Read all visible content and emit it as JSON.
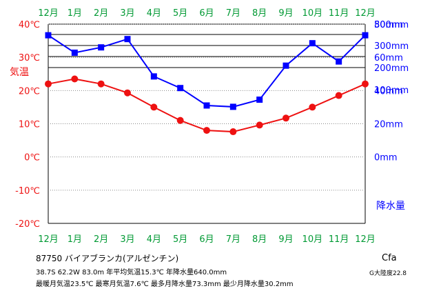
{
  "chart_data": {
    "type": "line",
    "categories": [
      "12月",
      "1月",
      "2月",
      "3月",
      "4月",
      "5月",
      "6月",
      "7月",
      "8月",
      "9月",
      "10月",
      "11月",
      "12月"
    ],
    "series": [
      {
        "name": "気温",
        "axis": "left",
        "color": "#ee1111",
        "marker": "circle",
        "values": [
          22.0,
          23.5,
          22.0,
          19.3,
          15.0,
          11.0,
          8.0,
          7.6,
          9.6,
          11.7,
          15.0,
          18.5,
          22.0
        ]
      },
      {
        "name": "降水量",
        "axis": "right",
        "color": "#0000ff",
        "marker": "square",
        "values": [
          73.3,
          62.8,
          66.0,
          71.0,
          48.5,
          41.5,
          31.0,
          30.2,
          34.5,
          55.0,
          68.5,
          57.5,
          73.3
        ]
      }
    ],
    "left_axis": {
      "label": "気温",
      "color": "#ee1111",
      "ylim": [
        -20,
        40
      ],
      "ticks": [
        "40℃",
        "30℃",
        "20℃",
        "10℃",
        "0℃",
        "-10℃",
        "-20℃"
      ]
    },
    "right_axis": {
      "label": "降水量",
      "color": "#0000ff",
      "ticks": [
        "500mm",
        "300mm",
        "200mm",
        "100mm",
        "80mm",
        "60mm",
        "40mm",
        "20mm",
        "0mm"
      ],
      "linear_range": [
        0,
        80
      ]
    },
    "month_label_color": "#009933",
    "grid": true
  },
  "station": {
    "id_name": "87750  バイアブランカ(アルゼンチン)",
    "line1": "38.7S  62.2W  83.0m  年平均気温15.3℃  年降水量640.0mm",
    "line2": "最暖月気温23.5℃ 最寒月気温7.6℃ 最多月降水量73.3mm 最少月降水量30.2mm",
    "climate": "Cfa",
    "continentality": "G大陸度22.8"
  }
}
